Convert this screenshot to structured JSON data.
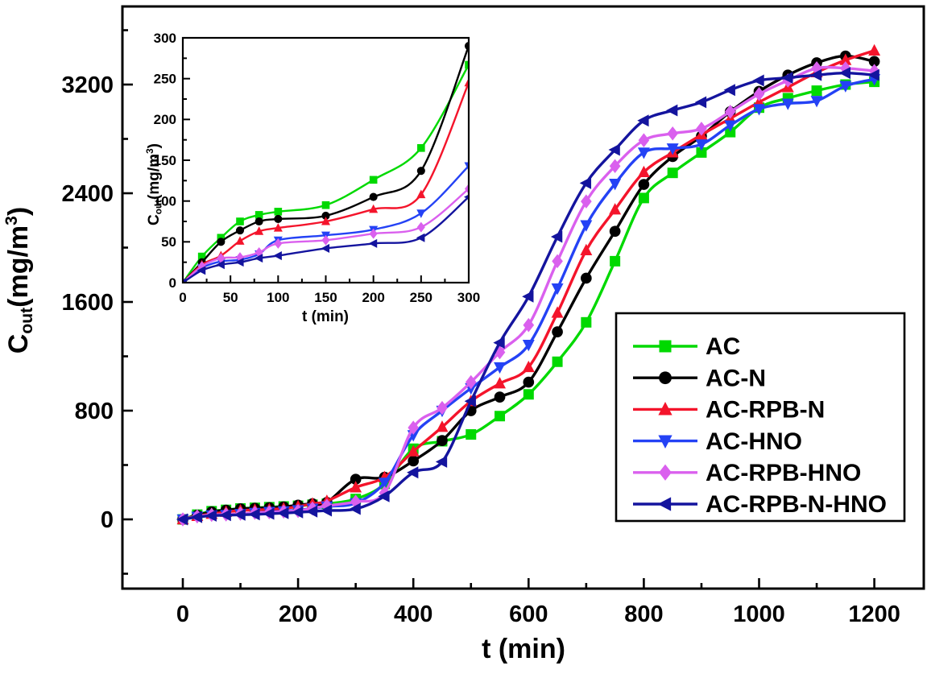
{
  "figure": {
    "background": "#ffffff"
  },
  "chart_data": [
    {
      "id": "main",
      "type": "line",
      "title": "",
      "xlabel": "t (min)",
      "ylabel": "C_out(mg/m^3)",
      "ylabel_parts": [
        [
          "n",
          "C"
        ],
        [
          "sub",
          "out"
        ],
        [
          "n",
          "(mg/m"
        ],
        [
          "sup",
          "3"
        ],
        [
          "n",
          ")"
        ]
      ],
      "xlim": [
        -105,
        1286
      ],
      "ylim": [
        -510,
        3775
      ],
      "grid": false,
      "legend_position": "lower-right-inside",
      "x_ticks": [
        0,
        200,
        400,
        600,
        800,
        1000,
        1200
      ],
      "x_minor_ticks": [
        100,
        300,
        500,
        700,
        900,
        1100
      ],
      "y_ticks": [
        0,
        800,
        1600,
        2400,
        3200
      ],
      "y_minor_ticks": [
        -400,
        400,
        1200,
        2000,
        2800,
        3600
      ],
      "x": [
        0,
        25,
        50,
        75,
        100,
        125,
        150,
        175,
        200,
        225,
        250,
        300,
        350,
        400,
        450,
        500,
        550,
        600,
        650,
        700,
        750,
        800,
        850,
        900,
        950,
        1000,
        1050,
        1100,
        1150,
        1200
      ],
      "series": [
        {
          "name": "AC",
          "color": "#00D900",
          "marker": "square",
          "values": [
            0,
            35,
            60,
            70,
            80,
            85,
            90,
            95,
            100,
            108,
            115,
            150,
            260,
            520,
            575,
            625,
            760,
            920,
            1160,
            1450,
            1900,
            2365,
            2550,
            2700,
            2850,
            3030,
            3100,
            3155,
            3200,
            3220
          ]
        },
        {
          "name": "AC-N",
          "color": "#000000",
          "marker": "circle",
          "values": [
            0,
            30,
            55,
            68,
            78,
            82,
            86,
            92,
            105,
            115,
            125,
            295,
            310,
            430,
            580,
            800,
            900,
            1010,
            1380,
            1775,
            2120,
            2465,
            2670,
            2820,
            3000,
            3150,
            3270,
            3360,
            3410,
            3370
          ]
        },
        {
          "name": "AC-RPB-N",
          "color": "#F4142B",
          "marker": "triangle-up",
          "values": [
            0,
            25,
            40,
            55,
            65,
            70,
            73,
            80,
            95,
            115,
            135,
            235,
            310,
            500,
            680,
            870,
            1000,
            1120,
            1520,
            1980,
            2280,
            2555,
            2700,
            2830,
            2950,
            3070,
            3180,
            3290,
            3380,
            3450
          ]
        },
        {
          "name": "AC-HNO",
          "color": "#2442F5",
          "marker": "triangle-down",
          "values": [
            0,
            20,
            30,
            33,
            40,
            48,
            55,
            60,
            68,
            80,
            95,
            120,
            270,
            620,
            800,
            965,
            1120,
            1285,
            1700,
            2165,
            2470,
            2700,
            2730,
            2760,
            2900,
            3020,
            3060,
            3080,
            3190,
            3240
          ]
        },
        {
          "name": "AC-RPB-HNO",
          "color": "#DA60EE",
          "marker": "diamond",
          "values": [
            0,
            22,
            33,
            36,
            42,
            48,
            52,
            57,
            62,
            80,
            100,
            130,
            195,
            675,
            820,
            1010,
            1230,
            1430,
            1900,
            2340,
            2600,
            2790,
            2840,
            2875,
            3000,
            3130,
            3230,
            3320,
            3320,
            3300
          ]
        },
        {
          "name": "AC-RPB-N-HNO",
          "color": "#14149E",
          "marker": "triangle-left",
          "values": [
            0,
            17,
            27,
            31,
            34,
            37,
            41,
            46,
            52,
            58,
            65,
            77,
            170,
            345,
            424,
            870,
            1300,
            1640,
            2080,
            2475,
            2720,
            2935,
            3010,
            3070,
            3160,
            3230,
            3250,
            3270,
            3285,
            3270
          ]
        }
      ]
    },
    {
      "id": "inset",
      "type": "line",
      "title": "",
      "xlabel": "t (min)",
      "ylabel": "C_out(mg/m^3)",
      "ylabel_parts": [
        [
          "n",
          "C"
        ],
        [
          "sub",
          "out"
        ],
        [
          "n",
          "(mg/m"
        ],
        [
          "sup",
          "3"
        ],
        [
          "n",
          ")"
        ]
      ],
      "xlim": [
        0,
        300
      ],
      "ylim": [
        0,
        300
      ],
      "grid": false,
      "x_ticks": [
        0,
        50,
        100,
        150,
        200,
        250,
        300
      ],
      "x_minor_ticks": [
        25,
        75,
        125,
        175,
        225,
        275
      ],
      "y_ticks": [
        0,
        50,
        100,
        150,
        200,
        250,
        300
      ],
      "y_minor_ticks": [
        25,
        75,
        125,
        175,
        225,
        275
      ],
      "x": [
        0,
        20,
        40,
        60,
        80,
        100,
        150,
        200,
        250,
        300
      ],
      "series": [
        {
          "name": "AC",
          "color": "#00D900",
          "marker": "square",
          "values": [
            0,
            32,
            55,
            75,
            83,
            87,
            95,
            126,
            165,
            267
          ]
        },
        {
          "name": "AC-N",
          "color": "#000000",
          "marker": "circle",
          "values": [
            0,
            25,
            50,
            64,
            75,
            78,
            82,
            105,
            137,
            290
          ]
        },
        {
          "name": "AC-RPB-N",
          "color": "#F4142B",
          "marker": "triangle-up",
          "values": [
            0,
            22,
            33,
            51,
            63,
            67,
            75,
            90,
            108,
            245
          ]
        },
        {
          "name": "AC-HNO",
          "color": "#2442F5",
          "marker": "triangle-down",
          "values": [
            0,
            18,
            26,
            28,
            35,
            52,
            58,
            65,
            85,
            143
          ]
        },
        {
          "name": "AC-RPB-HNO",
          "color": "#DA60EE",
          "marker": "diamond",
          "values": [
            0,
            20,
            30,
            31,
            37,
            48,
            52,
            60,
            68,
            115
          ]
        },
        {
          "name": "AC-RPB-N-HNO",
          "color": "#14149E",
          "marker": "triangle-left",
          "values": [
            0,
            15,
            22,
            25,
            30,
            33,
            42,
            48,
            55,
            105
          ]
        }
      ]
    }
  ],
  "legend": {
    "entries": [
      {
        "label": "AC",
        "color": "#00D900",
        "marker": "square"
      },
      {
        "label": "AC-N",
        "color": "#000000",
        "marker": "circle"
      },
      {
        "label": "AC-RPB-N",
        "color": "#F4142B",
        "marker": "triangle-up"
      },
      {
        "label": "AC-HNO",
        "color": "#2442F5",
        "marker": "triangle-down"
      },
      {
        "label": "AC-RPB-HNO",
        "color": "#DA60EE",
        "marker": "diamond"
      },
      {
        "label": "AC-RPB-N-HNO",
        "color": "#14149E",
        "marker": "triangle-left"
      }
    ]
  }
}
